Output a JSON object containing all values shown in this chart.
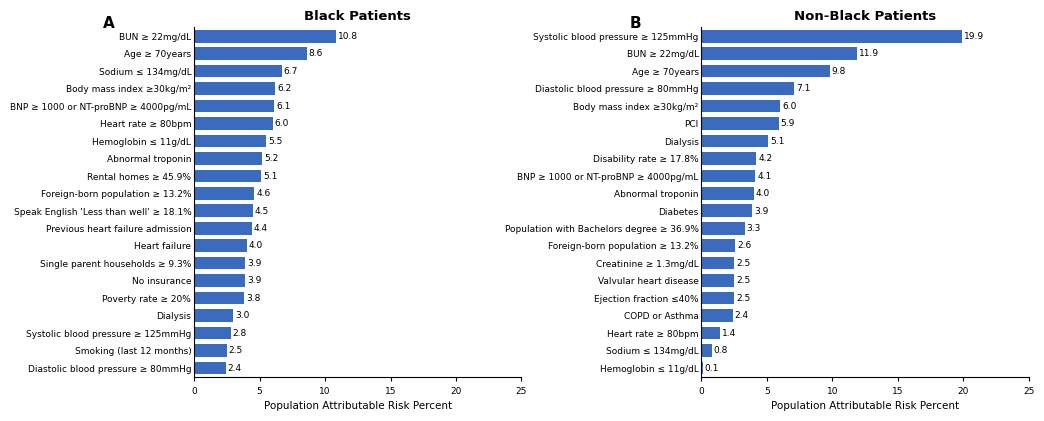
{
  "panel_A": {
    "title": "Black Patients",
    "label": "A",
    "categories": [
      "BUN ≥ 22mg/dL",
      "Age ≥ 70years",
      "Sodium ≤ 134mg/dL",
      "Body mass index ≥30kg/m²",
      "BNP ≥ 1000 or NT-proBNP ≥ 4000pg/mL",
      "Heart rate ≥ 80bpm",
      "Hemoglobin ≤ 11g/dL",
      "Abnormal troponin",
      "Rental homes ≥ 45.9%",
      "Foreign-born population ≥ 13.2%",
      "Speak English 'Less than well' ≥ 18.1%",
      "Previous heart failure admission",
      "Heart failure",
      "Single parent households ≥ 9.3%",
      "No insurance",
      "Poverty rate ≥ 20%",
      "Dialysis",
      "Systolic blood pressure ≥ 125mmHg",
      "Smoking (last 12 months)",
      "Diastolic blood pressure ≥ 80mmHg"
    ],
    "values": [
      10.8,
      8.6,
      6.7,
      6.2,
      6.1,
      6.0,
      5.5,
      5.2,
      5.1,
      4.6,
      4.5,
      4.4,
      4.0,
      3.9,
      3.9,
      3.8,
      3.0,
      2.8,
      2.5,
      2.4
    ],
    "xlim": [
      0,
      25
    ],
    "xticks": [
      0,
      5,
      10,
      15,
      20,
      25
    ],
    "xlabel": "Population Attributable Risk Percent",
    "bar_color": "#3a6bbf"
  },
  "panel_B": {
    "title": "Non-Black Patients",
    "label": "B",
    "categories": [
      "Systolic blood pressure ≥ 125mmHg",
      "BUN ≥ 22mg/dL",
      "Age ≥ 70years",
      "Diastolic blood pressure ≥ 80mmHg",
      "Body mass index ≥30kg/m²",
      "PCI",
      "Dialysis",
      "Disability rate ≥ 17.8%",
      "BNP ≥ 1000 or NT-proBNP ≥ 4000pg/mL",
      "Abnormal troponin",
      "Diabetes",
      "Population with Bachelors degree ≥ 36.9%",
      "Foreign-born population ≥ 13.2%",
      "Creatinine ≥ 1.3mg/dL",
      "Valvular heart disease",
      "Ejection fraction ≤40%",
      "COPD or Asthma",
      "Heart rate ≥ 80bpm",
      "Sodium ≤ 134mg/dL",
      "Hemoglobin ≤ 11g/dL"
    ],
    "values": [
      19.9,
      11.9,
      9.8,
      7.1,
      6.0,
      5.9,
      5.1,
      4.2,
      4.1,
      4.0,
      3.9,
      3.3,
      2.6,
      2.5,
      2.5,
      2.5,
      2.4,
      1.4,
      0.8,
      0.1
    ],
    "xlim": [
      0,
      25
    ],
    "xticks": [
      0,
      5,
      10,
      15,
      20,
      25
    ],
    "xlabel": "Population Attributable Risk Percent",
    "bar_color": "#3a6bbf"
  },
  "background_color": "#ffffff",
  "value_fontsize": 6.5,
  "label_fontsize": 6.5,
  "title_fontsize": 9.5,
  "panel_label_fontsize": 11,
  "axis_label_fontsize": 7.5
}
